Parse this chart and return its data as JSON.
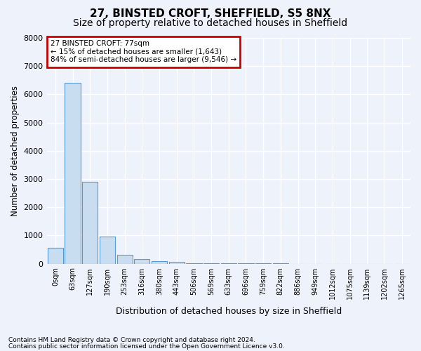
{
  "title": "27, BINSTED CROFT, SHEFFIELD, S5 8NX",
  "subtitle": "Size of property relative to detached houses in Sheffield",
  "xlabel": "Distribution of detached houses by size in Sheffield",
  "ylabel": "Number of detached properties",
  "footnote1": "Contains HM Land Registry data © Crown copyright and database right 2024.",
  "footnote2": "Contains public sector information licensed under the Open Government Licence v3.0.",
  "annotation_line1": "27 BINSTED CROFT: 77sqm",
  "annotation_line2": "← 15% of detached houses are smaller (1,643)",
  "annotation_line3": "84% of semi-detached houses are larger (9,546) →",
  "bar_labels": [
    "0sqm",
    "63sqm",
    "127sqm",
    "190sqm",
    "253sqm",
    "316sqm",
    "380sqm",
    "443sqm",
    "506sqm",
    "569sqm",
    "633sqm",
    "696sqm",
    "759sqm",
    "822sqm",
    "886sqm",
    "949sqm",
    "1012sqm",
    "1075sqm",
    "1139sqm",
    "1202sqm",
    "1265sqm"
  ],
  "bar_values": [
    550,
    6400,
    2900,
    950,
    320,
    150,
    100,
    60,
    20,
    5,
    3,
    2,
    1,
    1,
    0,
    0,
    0,
    0,
    0,
    0,
    0
  ],
  "bar_color": "#c9ddf0",
  "bar_edge_color": "#5b9bd5",
  "ylim_max": 8000,
  "yticks": [
    0,
    1000,
    2000,
    3000,
    4000,
    5000,
    6000,
    7000,
    8000
  ],
  "bg_color": "#eef2fb",
  "grid_color": "#ffffff",
  "annotation_box_edgecolor": "#cc0000",
  "title_fontsize": 11,
  "subtitle_fontsize": 10
}
